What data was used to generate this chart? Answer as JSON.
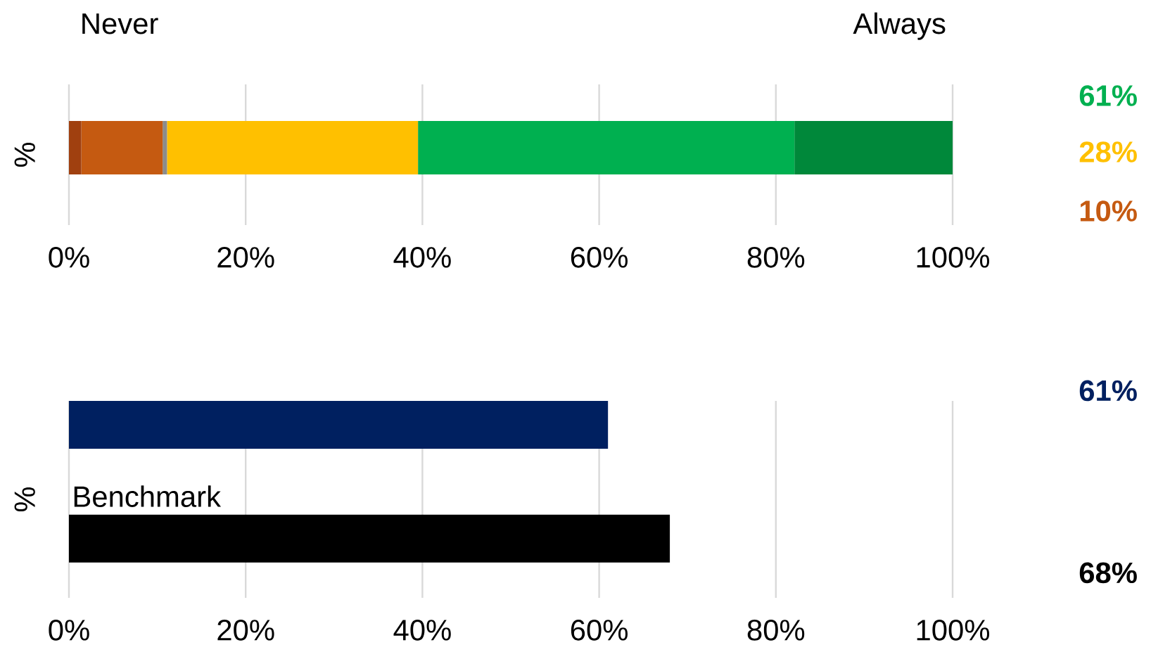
{
  "chart_data": [
    {
      "type": "bar",
      "orientation": "horizontal",
      "stacked": true,
      "ylabel": "%",
      "categories": [
        null
      ],
      "series": [
        {
          "color": "#a0400f",
          "values": [
            1.4
          ]
        },
        {
          "color": "#c55a11",
          "values": [
            9.2
          ]
        },
        {
          "color": "#8c8c8c",
          "values": [
            0.5
          ]
        },
        {
          "color": "#ffc000",
          "values": [
            28.4
          ]
        },
        {
          "color": "#00b050",
          "values": [
            42.6
          ]
        },
        {
          "color": "#00883a",
          "values": [
            17.9
          ]
        }
      ],
      "xlim": [
        0,
        100
      ],
      "xticks": [
        {
          "value": 0,
          "label": "0%"
        },
        {
          "value": 20,
          "label": "20%"
        },
        {
          "value": 40,
          "label": "40%"
        },
        {
          "value": 60,
          "label": "60%"
        },
        {
          "value": 80,
          "label": "80%"
        },
        {
          "value": 100,
          "label": "100%"
        }
      ],
      "grid": "x",
      "annotations": [
        "Never",
        "Always",
        "61%",
        "28%",
        "10%"
      ]
    },
    {
      "type": "bar",
      "orientation": "horizontal",
      "ylabel": "%",
      "categories": [
        null,
        "Benchmark"
      ],
      "values": [
        61,
        68
      ],
      "colors": [
        "#002060",
        "#000000"
      ],
      "value_labels": [
        "61%",
        "68%"
      ],
      "xlim": [
        0,
        100
      ],
      "xticks": [
        {
          "value": 0,
          "label": "0%"
        },
        {
          "value": 20,
          "label": "20%"
        },
        {
          "value": 40,
          "label": "40%"
        },
        {
          "value": 60,
          "label": "60%"
        },
        {
          "value": 80,
          "label": "80%"
        },
        {
          "value": 100,
          "label": "100%"
        }
      ],
      "grid": "x"
    }
  ]
}
